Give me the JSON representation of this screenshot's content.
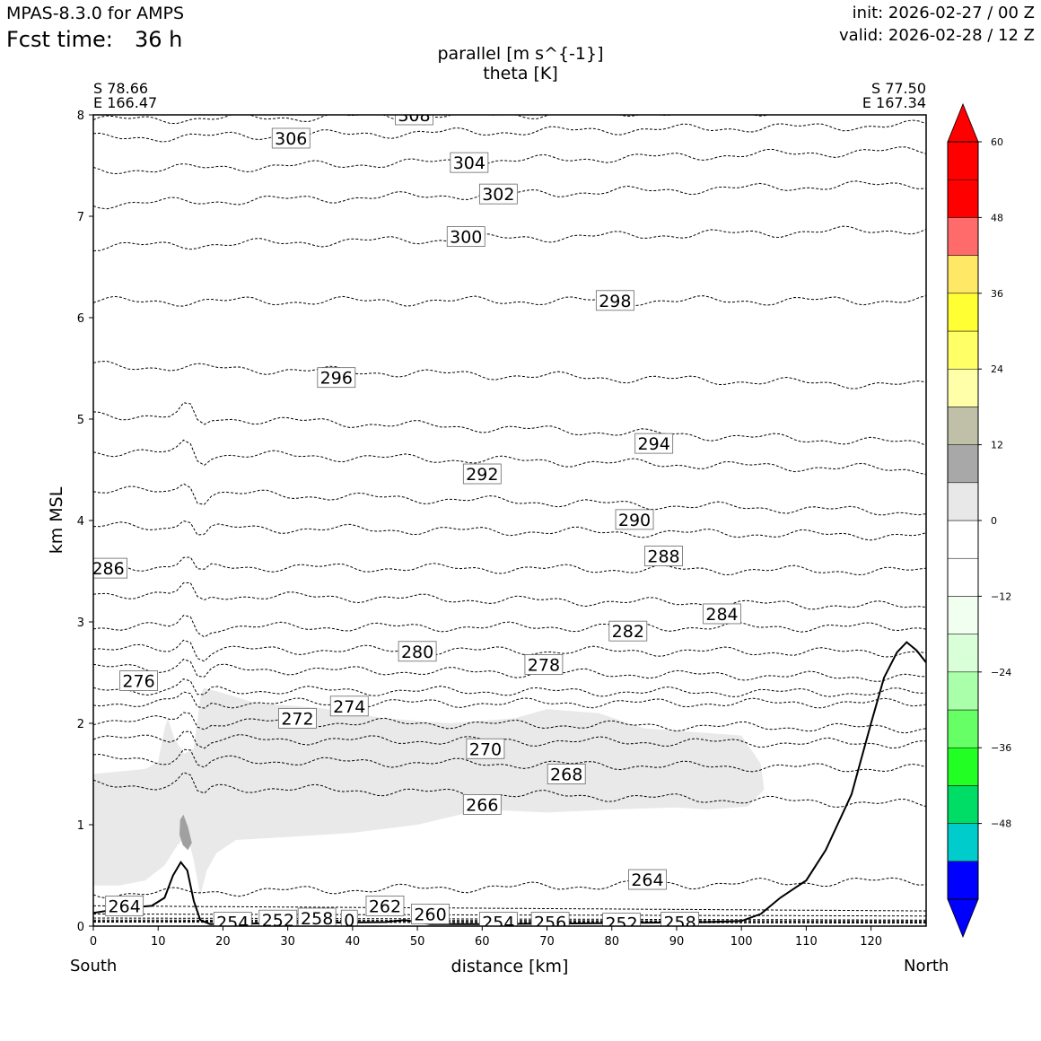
{
  "header": {
    "app_title": "MPAS-8.3.0 for AMPS",
    "fcst_label": "Fcst time:",
    "fcst_value": "36 h",
    "init": "init: 2026-02-27 / 00 Z",
    "valid": "valid: 2026-02-28 / 12 Z"
  },
  "endpoints": {
    "left_lat": "S 78.66",
    "left_lon": "E 166.47",
    "right_lat": "S 77.50",
    "right_lon": "E 167.34",
    "south": "South",
    "north": "North"
  },
  "chart_data": {
    "type": "cross-section",
    "title": "parallel [m s^{-1}]",
    "subtitle": "theta [K]",
    "xlabel": "distance [km]",
    "ylabel": "km MSL",
    "xlim": [
      0,
      128.5
    ],
    "ylim": [
      0,
      8
    ],
    "xticks": [
      "0",
      "10",
      "20",
      "30",
      "40",
      "50",
      "60",
      "70",
      "80",
      "90",
      "100",
      "110",
      "120"
    ],
    "yticks": [
      "0",
      "1",
      "2",
      "3",
      "4",
      "5",
      "6",
      "7",
      "8"
    ],
    "theta_contours": [
      {
        "level": 308,
        "y0": 7.95,
        "y1": 8.06
      },
      {
        "level": 306,
        "y0": 7.77,
        "y1": 7.9
      },
      {
        "level": 304,
        "y0": 7.45,
        "y1": 7.65
      },
      {
        "level": 302,
        "y0": 7.12,
        "y1": 7.32
      },
      {
        "level": 300,
        "y0": 6.7,
        "y1": 6.87
      },
      {
        "level": 298,
        "y0": 6.16,
        "y1": 6.17
      },
      {
        "level": 296,
        "y0": 5.53,
        "y1": 5.33
      },
      {
        "level": 294,
        "y0": 5.05,
        "y1": 4.76
      },
      {
        "level": 292,
        "y0": 4.68,
        "y1": 4.5
      },
      {
        "level": 290,
        "y0": 4.3,
        "y1": 4.08
      },
      {
        "level": 288,
        "y0": 3.94,
        "y1": 3.85
      },
      {
        "level": 286,
        "y0": 3.55,
        "y1": 3.5
      },
      {
        "level": 284,
        "y0": 3.28,
        "y1": 3.15
      },
      {
        "level": 282,
        "y0": 2.95,
        "y1": 2.95
      },
      {
        "level": 280,
        "y0": 2.73,
        "y1": 2.7
      },
      {
        "level": 278,
        "y0": 2.55,
        "y1": 2.45
      },
      {
        "level": 276,
        "y0": 2.33,
        "y1": 2.3
      },
      {
        "level": 274,
        "y0": 2.2,
        "y1": 2.2
      },
      {
        "level": 272,
        "y0": 2.03,
        "y1": 1.95
      },
      {
        "level": 270,
        "y0": 1.85,
        "y1": 1.8
      },
      {
        "level": 268,
        "y0": 1.65,
        "y1": 1.55
      },
      {
        "level": 266,
        "y0": 1.4,
        "y1": 1.2
      },
      {
        "level": 264,
        "y0": 0.32,
        "y1": 0.45
      },
      {
        "level": 262,
        "y0": 0.2,
        "y1": 0.15
      },
      {
        "level": 260,
        "y0": 0.12,
        "y1": 0.1
      },
      {
        "level": 258,
        "y0": 0.08,
        "y1": 0.06
      },
      {
        "level": 256,
        "y0": 0.06,
        "y1": 0.05
      },
      {
        "level": 254,
        "y0": 0.05,
        "y1": 0.04
      },
      {
        "level": 252,
        "y0": 0.04,
        "y1": 0.03
      }
    ],
    "contour_labels": [
      {
        "text": "308",
        "x": 49.5,
        "y": 8.0
      },
      {
        "text": "306",
        "x": 30.5,
        "y": 7.77
      },
      {
        "text": "304",
        "x": 58.0,
        "y": 7.53
      },
      {
        "text": "302",
        "x": 62.5,
        "y": 7.22
      },
      {
        "text": "300",
        "x": 57.5,
        "y": 6.8
      },
      {
        "text": "298",
        "x": 80.5,
        "y": 6.17
      },
      {
        "text": "296",
        "x": 37.5,
        "y": 5.41
      },
      {
        "text": "294",
        "x": 86.5,
        "y": 4.76
      },
      {
        "text": "292",
        "x": 60.0,
        "y": 4.46
      },
      {
        "text": "290",
        "x": 83.5,
        "y": 4.01
      },
      {
        "text": "288",
        "x": 88.0,
        "y": 3.65
      },
      {
        "text": "286",
        "x": 2.3,
        "y": 3.53
      },
      {
        "text": "284",
        "x": 97.0,
        "y": 3.08
      },
      {
        "text": "282",
        "x": 82.5,
        "y": 2.91
      },
      {
        "text": "280",
        "x": 50.0,
        "y": 2.71
      },
      {
        "text": "278",
        "x": 69.5,
        "y": 2.58
      },
      {
        "text": "276",
        "x": 7.0,
        "y": 2.42
      },
      {
        "text": "274",
        "x": 39.5,
        "y": 2.17
      },
      {
        "text": "272",
        "x": 31.5,
        "y": 2.05
      },
      {
        "text": "270",
        "x": 60.5,
        "y": 1.75
      },
      {
        "text": "268",
        "x": 73.0,
        "y": 1.5
      },
      {
        "text": "266",
        "x": 60.0,
        "y": 1.2
      },
      {
        "text": "264",
        "x": 85.5,
        "y": 0.46
      },
      {
        "text": "264",
        "x": 4.8,
        "y": 0.2
      },
      {
        "text": "262",
        "x": 45.0,
        "y": 0.2
      },
      {
        "text": "260",
        "x": 52.0,
        "y": 0.12
      },
      {
        "text": "254",
        "x": 21.5,
        "y": 0.04
      },
      {
        "text": "252",
        "x": 28.5,
        "y": 0.06
      },
      {
        "text": "258",
        "x": 34.5,
        "y": 0.08
      },
      {
        "text": "0",
        "x": 39.5,
        "y": 0.06
      },
      {
        "text": "254",
        "x": 62.5,
        "y": 0.04
      },
      {
        "text": "256",
        "x": 70.5,
        "y": 0.04
      },
      {
        "text": "252",
        "x": 81.5,
        "y": 0.03
      },
      {
        "text": "258",
        "x": 90.5,
        "y": 0.04
      }
    ],
    "terrain": [
      [
        0,
        0.13
      ],
      [
        5,
        0.18
      ],
      [
        9,
        0.2
      ],
      [
        11,
        0.28
      ],
      [
        12.3,
        0.5
      ],
      [
        13.5,
        0.63
      ],
      [
        14.5,
        0.55
      ],
      [
        15.5,
        0.25
      ],
      [
        16.5,
        0.06
      ],
      [
        18,
        0.02
      ],
      [
        30,
        0.03
      ],
      [
        45,
        0.04
      ],
      [
        48,
        0.06
      ],
      [
        52,
        0.02
      ],
      [
        60,
        0.02
      ],
      [
        80,
        0.03
      ],
      [
        95,
        0.04
      ],
      [
        100,
        0.05
      ],
      [
        103,
        0.12
      ],
      [
        106,
        0.28
      ],
      [
        110,
        0.45
      ],
      [
        113,
        0.75
      ],
      [
        117,
        1.3
      ],
      [
        120,
        2.0
      ],
      [
        122,
        2.45
      ],
      [
        124,
        2.7
      ],
      [
        125.5,
        2.8
      ],
      [
        127,
        2.72
      ],
      [
        128.5,
        2.6
      ]
    ],
    "wind_region_light": {
      "value_range": [
        6,
        12
      ],
      "polygon": [
        [
          0,
          1.5
        ],
        [
          8,
          1.55
        ],
        [
          10,
          1.62
        ],
        [
          11,
          1.95
        ],
        [
          11.5,
          2.05
        ],
        [
          12.5,
          1.85
        ],
        [
          14,
          1.7
        ],
        [
          15.5,
          1.75
        ],
        [
          16.5,
          2.25
        ],
        [
          17,
          2.35
        ],
        [
          20,
          2.3
        ],
        [
          25,
          2.2
        ],
        [
          35,
          2.15
        ],
        [
          45,
          2.05
        ],
        [
          55,
          2.0
        ],
        [
          65,
          2.05
        ],
        [
          70,
          2.14
        ],
        [
          78,
          2.1
        ],
        [
          85,
          1.95
        ],
        [
          100,
          1.88
        ],
        [
          103,
          1.6
        ],
        [
          103.5,
          1.35
        ],
        [
          101,
          1.18
        ],
        [
          95,
          1.15
        ],
        [
          90,
          1.17
        ],
        [
          80,
          1.15
        ],
        [
          70,
          1.12
        ],
        [
          60,
          1.15
        ],
        [
          50,
          1.0
        ],
        [
          40,
          0.92
        ],
        [
          30,
          0.88
        ],
        [
          22,
          0.85
        ],
        [
          19,
          0.72
        ],
        [
          17.5,
          0.55
        ],
        [
          16.5,
          0.3
        ],
        [
          15.5,
          0.65
        ],
        [
          14.5,
          0.9
        ],
        [
          13,
          0.8
        ],
        [
          11,
          0.6
        ],
        [
          8,
          0.45
        ],
        [
          4,
          0.4
        ],
        [
          0,
          0.4
        ]
      ]
    },
    "wind_region_dark": {
      "value_range": [
        12,
        18
      ],
      "polygon": [
        [
          13.4,
          1.05
        ],
        [
          13.9,
          1.1
        ],
        [
          14.6,
          0.98
        ],
        [
          15.2,
          0.82
        ],
        [
          14.6,
          0.75
        ],
        [
          13.8,
          0.8
        ],
        [
          13.3,
          0.9
        ]
      ]
    },
    "colorbar": {
      "ticks": [
        "60",
        "48",
        "36",
        "24",
        "12",
        "0",
        "−12",
        "−24",
        "−36",
        "−48"
      ],
      "min": -60,
      "max": 60,
      "step": 6,
      "colors": [
        "#0000ff",
        "#00cccc",
        "#00dd66",
        "#22ff22",
        "#66ff66",
        "#aaffaa",
        "#d8ffd8",
        "#f0fff0",
        "#ffffff",
        "#ffffff",
        "#e8e8e8",
        "#a8a8a8",
        "#c0c0a8",
        "#ffffaa",
        "#ffff66",
        "#ffff33",
        "#ffe866",
        "#ff6b6b",
        "#ff0000",
        "#ff0000"
      ]
    }
  }
}
